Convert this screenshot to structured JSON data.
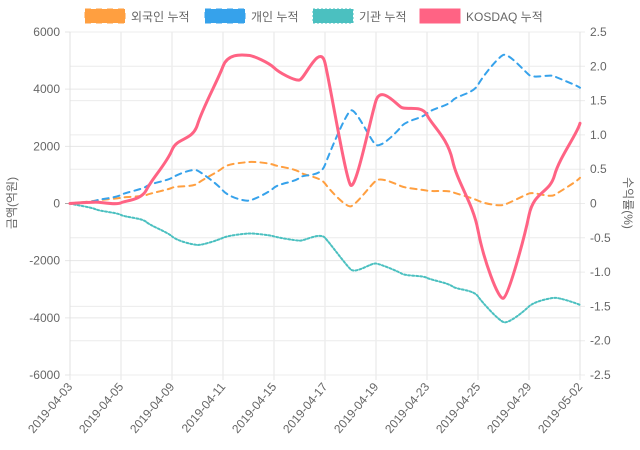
{
  "chart_data": {
    "type": "line",
    "title": "",
    "xlabel": "",
    "ylabel": "금액(억원)",
    "y2label": "수익률(%)",
    "ylim": [
      -6000,
      6000
    ],
    "y2lim": [
      -2.5,
      2.5
    ],
    "yticks": [
      6000,
      4000,
      2000,
      0,
      -2000,
      -4000,
      -6000
    ],
    "y2ticks": [
      "2.5",
      "2.0",
      "1.5",
      "1.0",
      "0.5",
      "0",
      "-0.5",
      "-1.0",
      "-1.5",
      "-2.0",
      "-2.5"
    ],
    "legend_position": "top",
    "x": [
      "2019-04-03",
      "2019-04-04",
      "2019-04-05",
      "2019-04-08",
      "2019-04-09",
      "2019-04-10",
      "2019-04-11",
      "2019-04-12",
      "2019-04-15",
      "2019-04-16",
      "2019-04-17",
      "2019-04-18",
      "2019-04-19",
      "2019-04-22",
      "2019-04-23",
      "2019-04-24",
      "2019-04-25",
      "2019-04-26",
      "2019-04-29",
      "2019-04-30",
      "2019-05-02"
    ],
    "xtick_labels": [
      "2019-04-03",
      "2019-04-05",
      "2019-04-09",
      "2019-04-11",
      "2019-04-15",
      "2019-04-17",
      "2019-04-19",
      "2019-04-23",
      "2019-04-25",
      "2019-04-29",
      "2019-05-02"
    ],
    "series": [
      {
        "name": "외국인 누적",
        "axis": "left",
        "color": "#ff9f40",
        "style": "dashed",
        "values": [
          0,
          100,
          200,
          300,
          550,
          700,
          1250,
          1450,
          1350,
          1100,
          700,
          -100,
          800,
          600,
          450,
          400,
          100,
          -50,
          350,
          300,
          900
        ]
      },
      {
        "name": "개인 누적",
        "axis": "left",
        "color": "#36a2eb",
        "style": "dashed",
        "values": [
          0,
          100,
          300,
          600,
          900,
          1150,
          450,
          100,
          550,
          900,
          1350,
          3250,
          2050,
          2700,
          3150,
          3600,
          4150,
          5200,
          4500,
          4450,
          4050
        ]
      },
      {
        "name": "기관 누적",
        "axis": "left",
        "color": "#4bc0c0",
        "style": "dotted",
        "values": [
          0,
          -200,
          -400,
          -650,
          -1150,
          -1450,
          -1200,
          -1050,
          -1150,
          -1300,
          -1200,
          -2300,
          -2100,
          -2450,
          -2600,
          -2900,
          -3250,
          -4150,
          -3600,
          -3300,
          -3550
        ]
      },
      {
        "name": "KOSDAQ 누적",
        "axis": "right",
        "color": "#ff6384",
        "style": "solid",
        "values": [
          0,
          0.02,
          0.01,
          0.2,
          0.78,
          1.15,
          2.0,
          2.16,
          1.98,
          1.8,
          2.05,
          0.27,
          1.5,
          1.4,
          1.29,
          0.63,
          -0.39,
          -1.38,
          -0.17,
          0.41,
          1.17
        ]
      }
    ]
  }
}
